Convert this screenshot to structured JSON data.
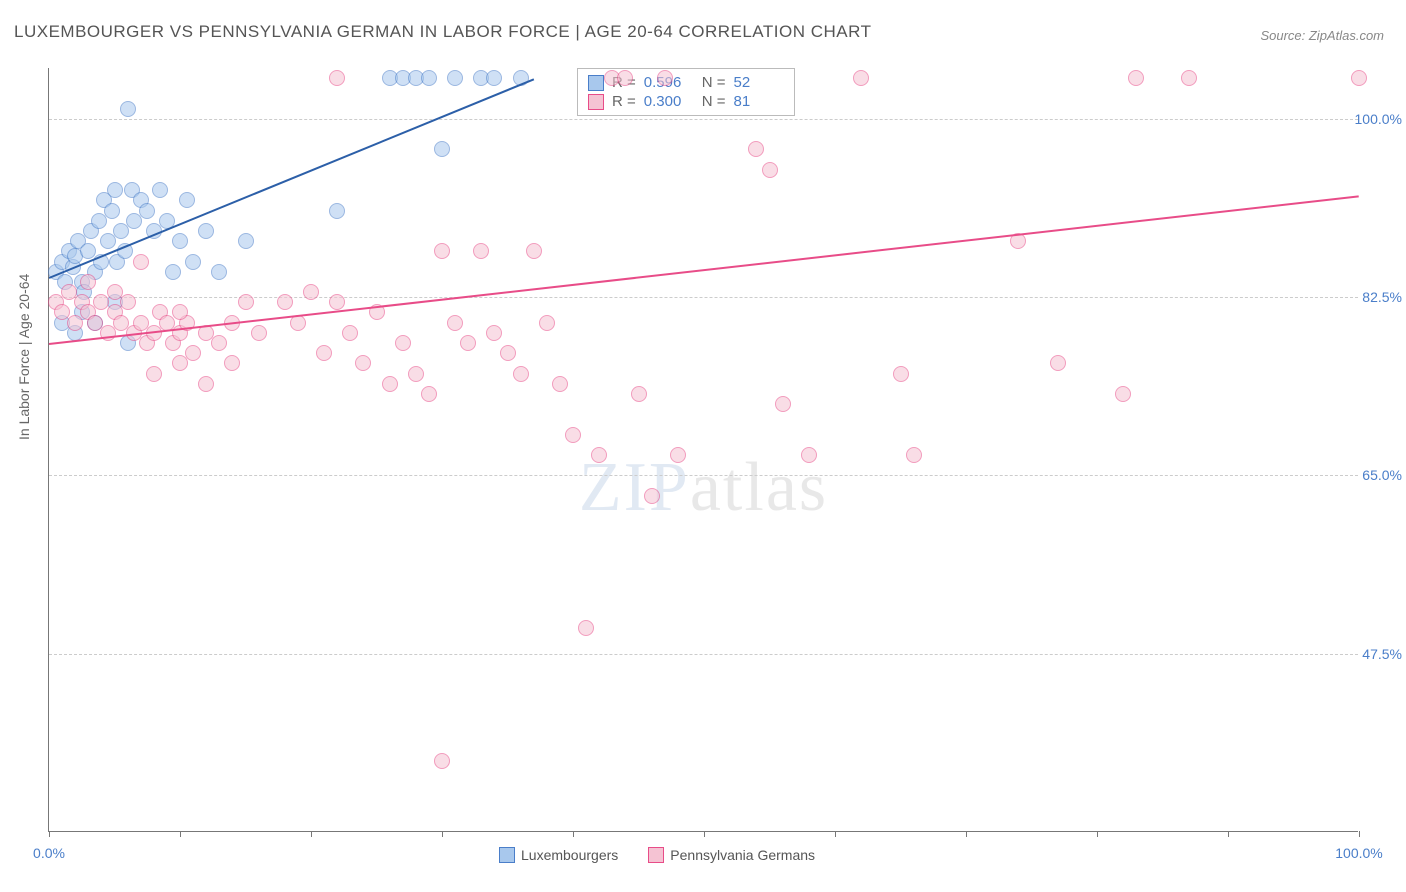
{
  "title": "LUXEMBOURGER VS PENNSYLVANIA GERMAN IN LABOR FORCE | AGE 20-64 CORRELATION CHART",
  "source": "Source: ZipAtlas.com",
  "ylabel": "In Labor Force | Age 20-64",
  "watermark_zip": "ZIP",
  "watermark_atlas": "atlas",
  "chart": {
    "type": "scatter-with-trend",
    "xlim": [
      0,
      100
    ],
    "ylim": [
      30,
      105
    ],
    "x_ticks": [
      0,
      10,
      20,
      30,
      40,
      50,
      60,
      70,
      80,
      90,
      100
    ],
    "x_tick_labels": {
      "0": "0.0%",
      "100": "100.0%"
    },
    "y_ticks": [
      47.5,
      65.0,
      82.5,
      100.0
    ],
    "y_tick_labels": [
      "47.5%",
      "65.0%",
      "82.5%",
      "100.0%"
    ],
    "background_color": "#ffffff",
    "grid_color": "#cccccc",
    "axis_color": "#777777",
    "tick_label_color": "#4a7ec9",
    "point_radius": 8,
    "point_opacity": 0.55,
    "series": [
      {
        "name": "Luxembourgers",
        "color_fill": "#a8c8ed",
        "color_stroke": "#4a7ec9",
        "trend_color": "#2c5fa8",
        "trend_width": 2,
        "R": "0.596",
        "N": "52",
        "trend": {
          "x1": 0,
          "y1": 84.5,
          "x2": 37,
          "y2": 104
        },
        "points": [
          [
            0.5,
            85
          ],
          [
            1,
            86
          ],
          [
            1.2,
            84
          ],
          [
            1.5,
            87
          ],
          [
            1.8,
            85.5
          ],
          [
            2,
            86.5
          ],
          [
            2.2,
            88
          ],
          [
            2.5,
            84
          ],
          [
            2.7,
            83
          ],
          [
            3,
            87
          ],
          [
            3.2,
            89
          ],
          [
            3.5,
            85
          ],
          [
            3.8,
            90
          ],
          [
            4,
            86
          ],
          [
            4.2,
            92
          ],
          [
            4.5,
            88
          ],
          [
            4.8,
            91
          ],
          [
            5,
            93
          ],
          [
            5.2,
            86
          ],
          [
            5.5,
            89
          ],
          [
            5.8,
            87
          ],
          [
            6,
            101
          ],
          [
            6.3,
            93
          ],
          [
            6.5,
            90
          ],
          [
            7,
            92
          ],
          [
            7.5,
            91
          ],
          [
            8,
            89
          ],
          [
            8.5,
            93
          ],
          [
            9,
            90
          ],
          [
            9.5,
            85
          ],
          [
            10,
            88
          ],
          [
            10.5,
            92
          ],
          [
            11,
            86
          ],
          [
            12,
            89
          ],
          [
            13,
            85
          ],
          [
            15,
            88
          ],
          [
            2,
            79
          ],
          [
            3.5,
            80
          ],
          [
            5,
            82
          ],
          [
            6,
            78
          ],
          [
            2.5,
            81
          ],
          [
            22,
            91
          ],
          [
            26,
            104
          ],
          [
            27,
            104
          ],
          [
            28,
            104
          ],
          [
            29,
            104
          ],
          [
            30,
            97
          ],
          [
            31,
            104
          ],
          [
            33,
            104
          ],
          [
            34,
            104
          ],
          [
            36,
            104
          ],
          [
            1,
            80
          ]
        ]
      },
      {
        "name": "Pennsylvania Germans",
        "color_fill": "#f5c3d3",
        "color_stroke": "#e84c88",
        "trend_color": "#e84c88",
        "trend_width": 2,
        "R": "0.300",
        "N": "81",
        "trend": {
          "x1": 0,
          "y1": 78,
          "x2": 100,
          "y2": 92.5
        },
        "points": [
          [
            0.5,
            82
          ],
          [
            1,
            81
          ],
          [
            1.5,
            83
          ],
          [
            2,
            80
          ],
          [
            2.5,
            82
          ],
          [
            3,
            81
          ],
          [
            3.5,
            80
          ],
          [
            4,
            82
          ],
          [
            4.5,
            79
          ],
          [
            5,
            81
          ],
          [
            5.5,
            80
          ],
          [
            6,
            82
          ],
          [
            6.5,
            79
          ],
          [
            7,
            80
          ],
          [
            7.5,
            78
          ],
          [
            8,
            79
          ],
          [
            8.5,
            81
          ],
          [
            9,
            80
          ],
          [
            9.5,
            78
          ],
          [
            10,
            79
          ],
          [
            10.5,
            80
          ],
          [
            11,
            77
          ],
          [
            12,
            79
          ],
          [
            13,
            78
          ],
          [
            14,
            80
          ],
          [
            15,
            82
          ],
          [
            8,
            75
          ],
          [
            10,
            76
          ],
          [
            12,
            74
          ],
          [
            14,
            76
          ],
          [
            16,
            79
          ],
          [
            18,
            82
          ],
          [
            19,
            80
          ],
          [
            20,
            83
          ],
          [
            21,
            77
          ],
          [
            22,
            82
          ],
          [
            23,
            79
          ],
          [
            24,
            76
          ],
          [
            25,
            81
          ],
          [
            26,
            74
          ],
          [
            27,
            78
          ],
          [
            28,
            75
          ],
          [
            29,
            73
          ],
          [
            30,
            87
          ],
          [
            31,
            80
          ],
          [
            32,
            78
          ],
          [
            33,
            87
          ],
          [
            34,
            79
          ],
          [
            35,
            77
          ],
          [
            36,
            75
          ],
          [
            37,
            87
          ],
          [
            38,
            80
          ],
          [
            39,
            74
          ],
          [
            40,
            69
          ],
          [
            41,
            50
          ],
          [
            42,
            67
          ],
          [
            43,
            104
          ],
          [
            44,
            104
          ],
          [
            45,
            73
          ],
          [
            46,
            63
          ],
          [
            47,
            104
          ],
          [
            48,
            67
          ],
          [
            30,
            37
          ],
          [
            54,
            97
          ],
          [
            55,
            95
          ],
          [
            56,
            72
          ],
          [
            58,
            67
          ],
          [
            62,
            104
          ],
          [
            65,
            75
          ],
          [
            66,
            67
          ],
          [
            74,
            88
          ],
          [
            77,
            76
          ],
          [
            82,
            73
          ],
          [
            83,
            104
          ],
          [
            87,
            104
          ],
          [
            100,
            104
          ],
          [
            3,
            84
          ],
          [
            5,
            83
          ],
          [
            22,
            104
          ],
          [
            10,
            81
          ],
          [
            7,
            86
          ]
        ]
      }
    ]
  },
  "legend_bottom": [
    {
      "label": "Luxembourgers",
      "fill": "#a8c8ed",
      "stroke": "#4a7ec9"
    },
    {
      "label": "Pennsylvania Germans",
      "fill": "#f5c3d3",
      "stroke": "#e84c88"
    }
  ]
}
